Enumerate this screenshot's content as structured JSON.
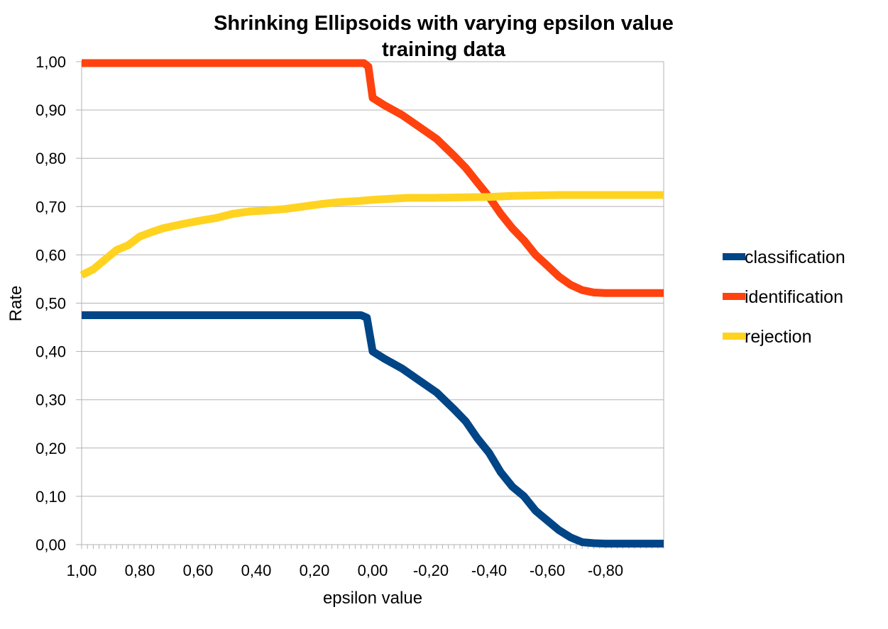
{
  "chart_data": {
    "type": "line",
    "title": "Shrinking Ellipsoids with varying epsilon value",
    "subtitle": "training data",
    "xlabel": "epsilon value",
    "ylabel": "Rate",
    "xlim": [
      1.0,
      -1.0
    ],
    "ylim": [
      0.0,
      1.0
    ],
    "x_tick_labels": [
      "1,00",
      "0,80",
      "0,60",
      "0,40",
      "0,20",
      "0,00",
      "-0,20",
      "-0,40",
      "-0,60",
      "-0,80"
    ],
    "y_tick_labels": [
      "0,00",
      "0,10",
      "0,20",
      "0,30",
      "0,40",
      "0,50",
      "0,60",
      "0,70",
      "0,80",
      "0,90",
      "1,00"
    ],
    "grid": true,
    "legend_position": "right",
    "series": [
      {
        "name": "classification",
        "color": "#004586",
        "points": [
          [
            1.0,
            0.475
          ],
          [
            0.04,
            0.475
          ],
          [
            0.02,
            0.47
          ],
          [
            0.0,
            0.4
          ],
          [
            -0.04,
            0.385
          ],
          [
            -0.1,
            0.365
          ],
          [
            -0.16,
            0.34
          ],
          [
            -0.22,
            0.315
          ],
          [
            -0.28,
            0.28
          ],
          [
            -0.32,
            0.255
          ],
          [
            -0.36,
            0.22
          ],
          [
            -0.4,
            0.19
          ],
          [
            -0.44,
            0.15
          ],
          [
            -0.48,
            0.12
          ],
          [
            -0.52,
            0.1
          ],
          [
            -0.56,
            0.07
          ],
          [
            -0.6,
            0.05
          ],
          [
            -0.64,
            0.03
          ],
          [
            -0.68,
            0.015
          ],
          [
            -0.72,
            0.005
          ],
          [
            -0.76,
            0.003
          ],
          [
            -0.8,
            0.002
          ],
          [
            -1.0,
            0.002
          ]
        ]
      },
      {
        "name": "identification",
        "color": "#ff420e",
        "points": [
          [
            1.0,
            0.997
          ],
          [
            0.03,
            0.997
          ],
          [
            0.015,
            0.99
          ],
          [
            0.0,
            0.925
          ],
          [
            -0.04,
            0.91
          ],
          [
            -0.1,
            0.89
          ],
          [
            -0.16,
            0.865
          ],
          [
            -0.22,
            0.84
          ],
          [
            -0.28,
            0.805
          ],
          [
            -0.32,
            0.78
          ],
          [
            -0.36,
            0.75
          ],
          [
            -0.4,
            0.72
          ],
          [
            -0.44,
            0.685
          ],
          [
            -0.48,
            0.655
          ],
          [
            -0.52,
            0.63
          ],
          [
            -0.56,
            0.6
          ],
          [
            -0.6,
            0.578
          ],
          [
            -0.64,
            0.555
          ],
          [
            -0.68,
            0.538
          ],
          [
            -0.72,
            0.527
          ],
          [
            -0.76,
            0.522
          ],
          [
            -0.8,
            0.521
          ],
          [
            -1.0,
            0.521
          ]
        ]
      },
      {
        "name": "rejection",
        "color": "#ffd320",
        "points": [
          [
            1.0,
            0.558
          ],
          [
            0.96,
            0.57
          ],
          [
            0.92,
            0.59
          ],
          [
            0.88,
            0.61
          ],
          [
            0.84,
            0.62
          ],
          [
            0.8,
            0.638
          ],
          [
            0.76,
            0.647
          ],
          [
            0.72,
            0.655
          ],
          [
            0.66,
            0.663
          ],
          [
            0.6,
            0.67
          ],
          [
            0.54,
            0.676
          ],
          [
            0.48,
            0.685
          ],
          [
            0.42,
            0.69
          ],
          [
            0.36,
            0.692
          ],
          [
            0.3,
            0.695
          ],
          [
            0.24,
            0.7
          ],
          [
            0.18,
            0.705
          ],
          [
            0.12,
            0.709
          ],
          [
            0.06,
            0.711
          ],
          [
            0.0,
            0.714
          ],
          [
            -0.06,
            0.716
          ],
          [
            -0.12,
            0.718
          ],
          [
            -0.2,
            0.718
          ],
          [
            -0.3,
            0.719
          ],
          [
            -0.4,
            0.72
          ],
          [
            -0.48,
            0.722
          ],
          [
            -0.56,
            0.723
          ],
          [
            -0.64,
            0.724
          ],
          [
            -0.8,
            0.724
          ],
          [
            -1.0,
            0.724
          ]
        ]
      }
    ]
  }
}
